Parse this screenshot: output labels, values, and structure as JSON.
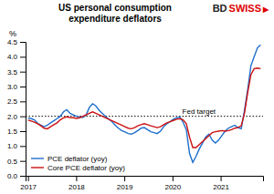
{
  "chart_data": {
    "type": "line",
    "title": "US personal consumption\nexpenditure deflators",
    "y_label": "%",
    "x": [
      2017.0,
      2017.067083,
      2017.134167,
      2017.20125,
      2017.268333,
      2017.335417,
      2017.4025,
      2017.469583,
      2017.536667,
      2017.60375,
      2017.670833,
      2017.737917,
      2017.805,
      2017.872083,
      2017.939167,
      2018.00625,
      2018.073333,
      2018.140417,
      2018.2075,
      2018.274583,
      2018.341667,
      2018.40875,
      2018.475833,
      2018.542917,
      2018.61,
      2018.677083,
      2018.744167,
      2018.81125,
      2018.878333,
      2018.945417,
      2019.0125,
      2019.079583,
      2019.146667,
      2019.21375,
      2019.280833,
      2019.347917,
      2019.415,
      2019.482083,
      2019.549167,
      2019.61625,
      2019.683333,
      2019.750417,
      2019.8175,
      2019.884583,
      2019.951667,
      2020.01875,
      2020.085833,
      2020.152917,
      2020.22,
      2020.287083,
      2020.354167,
      2020.42125,
      2020.488333,
      2020.555417,
      2020.6225,
      2020.689583,
      2020.756667,
      2020.82375,
      2020.890833,
      2020.957917,
      2021.025,
      2021.092083,
      2021.159167,
      2021.22625,
      2021.293333,
      2021.360417,
      2021.4275,
      2021.494583,
      2021.561667,
      2021.62875,
      2021.695833,
      2021.762917,
      2021.83
    ],
    "series": [
      {
        "name": "PCE deflator (yoy)",
        "color": "#1e6fcc",
        "values": [
          1.94,
          1.92,
          1.88,
          1.76,
          1.7,
          1.65,
          1.7,
          1.78,
          1.85,
          1.92,
          2.0,
          2.15,
          2.22,
          2.1,
          2.05,
          2.0,
          1.98,
          1.96,
          2.05,
          2.3,
          2.42,
          2.35,
          2.2,
          2.1,
          2.0,
          1.9,
          1.82,
          1.7,
          1.6,
          1.52,
          1.47,
          1.42,
          1.4,
          1.45,
          1.52,
          1.6,
          1.62,
          1.55,
          1.48,
          1.45,
          1.42,
          1.5,
          1.65,
          1.75,
          1.82,
          1.9,
          1.95,
          1.98,
          1.8,
          1.55,
          0.75,
          0.45,
          0.65,
          0.9,
          1.1,
          1.3,
          1.4,
          1.2,
          1.1,
          1.2,
          1.35,
          1.5,
          1.6,
          1.65,
          1.7,
          1.62,
          1.58,
          2.2,
          2.9,
          3.7,
          4.0,
          4.3,
          4.4
        ]
      },
      {
        "name": "Core PCE deflator (yoy)",
        "color": "#cc1111",
        "values": [
          1.87,
          1.84,
          1.8,
          1.75,
          1.68,
          1.6,
          1.58,
          1.65,
          1.72,
          1.78,
          1.88,
          1.95,
          1.98,
          1.96,
          1.95,
          1.93,
          1.95,
          2.0,
          2.05,
          2.1,
          2.15,
          2.1,
          2.05,
          2.0,
          1.95,
          1.9,
          1.85,
          1.8,
          1.75,
          1.7,
          1.65,
          1.6,
          1.58,
          1.62,
          1.68,
          1.72,
          1.75,
          1.72,
          1.68,
          1.65,
          1.62,
          1.65,
          1.72,
          1.78,
          1.82,
          1.86,
          1.9,
          1.92,
          1.88,
          1.75,
          1.3,
          0.95,
          0.95,
          1.05,
          1.15,
          1.25,
          1.35,
          1.45,
          1.48,
          1.5,
          1.52,
          1.5,
          1.52,
          1.55,
          1.6,
          1.62,
          1.68,
          2.1,
          2.8,
          3.4,
          3.6,
          3.62,
          3.6
        ]
      }
    ],
    "xlim": [
      2016.95,
      2021.88
    ],
    "xticks": [
      2017,
      2018,
      2019,
      2020,
      2021
    ],
    "ylim": [
      0.0,
      4.5
    ],
    "yticks": [
      {
        "value": 0.0,
        "label": "0.0"
      },
      0.5,
      {
        "value": 1.0,
        "label": "1.0"
      },
      1.5,
      {
        "value": 2.0,
        "label": "2.0"
      },
      2.5,
      {
        "value": 3.0,
        "label": "3.0"
      },
      3.5,
      {
        "value": 4.0,
        "label": "4.0"
      },
      4.5
    ],
    "annotations": [
      {
        "type": "hline",
        "y": 2.0,
        "text": "Fed target",
        "color": "#000000",
        "line_style": "dotted"
      },
      {
        "text": "BD",
        "color": "#222222"
      },
      {
        "text": "SWISS",
        "color": "#dd0000"
      },
      {
        "text": "▶",
        "color": "#dd0000"
      }
    ],
    "legend": "lower left",
    "grid": false
  }
}
